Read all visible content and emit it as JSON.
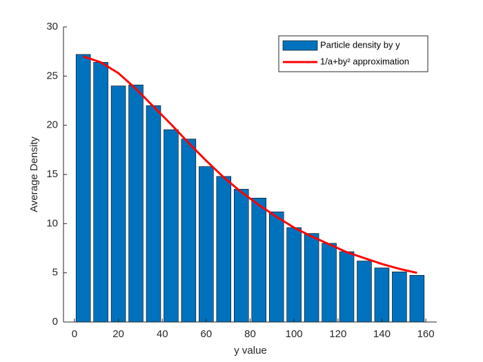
{
  "chart_data": {
    "type": "bar",
    "xlabel": "y value",
    "ylabel": "Average Density",
    "x": [
      4,
      12,
      20,
      28,
      36,
      44,
      52,
      60,
      68,
      76,
      84,
      92,
      100,
      108,
      116,
      124,
      132,
      140,
      148,
      156
    ],
    "series": [
      {
        "name": "Particle density by y",
        "type": "bar",
        "color": "#0072bd",
        "values": [
          27.2,
          26.4,
          24.0,
          24.1,
          22.0,
          19.55,
          18.6,
          15.8,
          14.8,
          13.5,
          12.6,
          11.2,
          9.6,
          9.0,
          8.0,
          7.15,
          6.2,
          5.5,
          5.1,
          4.75
        ]
      },
      {
        "name": "1/a+by² approximation",
        "type": "line",
        "color": "#ff0000",
        "values": [
          27.0,
          26.4,
          25.3,
          23.7,
          21.9,
          20.1,
          18.2,
          16.4,
          14.7,
          13.2,
          11.9,
          10.7,
          9.6,
          8.7,
          7.9,
          7.1,
          6.5,
          5.9,
          5.4,
          5.0
        ]
      }
    ],
    "xlim": [
      -5,
      165
    ],
    "ylim": [
      0,
      30
    ],
    "xticks": [
      0,
      20,
      40,
      60,
      80,
      100,
      120,
      140,
      160
    ],
    "yticks": [
      0,
      5,
      10,
      15,
      20,
      25,
      30
    ],
    "legend": "upper right"
  }
}
